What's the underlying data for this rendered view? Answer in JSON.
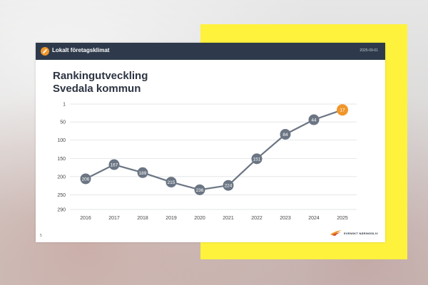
{
  "header": {
    "app_name": "Lokalt företagsklimat",
    "date": "2025-09-01"
  },
  "slide": {
    "title_line1": "Rankingutveckling",
    "title_line2": "Svedala kommun",
    "page_number": "5",
    "brand_text": "SVENSKT NÄRINGSLIV"
  },
  "colors": {
    "header_bg": "#2e3a4b",
    "accent_orange": "#f0962a",
    "line_gray": "#6b7583",
    "yellow": "#fff23d"
  },
  "icons": {
    "logo": "stairs-logo-icon",
    "brand": "bird-logo-icon"
  },
  "chart_data": {
    "type": "line",
    "x": [
      "2016",
      "2017",
      "2018",
      "2019",
      "2020",
      "2021",
      "2022",
      "2023",
      "2024",
      "2025"
    ],
    "series": [
      {
        "values": [
          206,
          167,
          189,
          215,
          236,
          224,
          151,
          84,
          44,
          17
        ]
      }
    ],
    "y_ticks": [
      1,
      50,
      100,
      150,
      200,
      250,
      290
    ],
    "ylim": [
      1,
      290
    ],
    "y_inverted": true,
    "grid": true,
    "legend": "none",
    "highlight_last": true
  }
}
